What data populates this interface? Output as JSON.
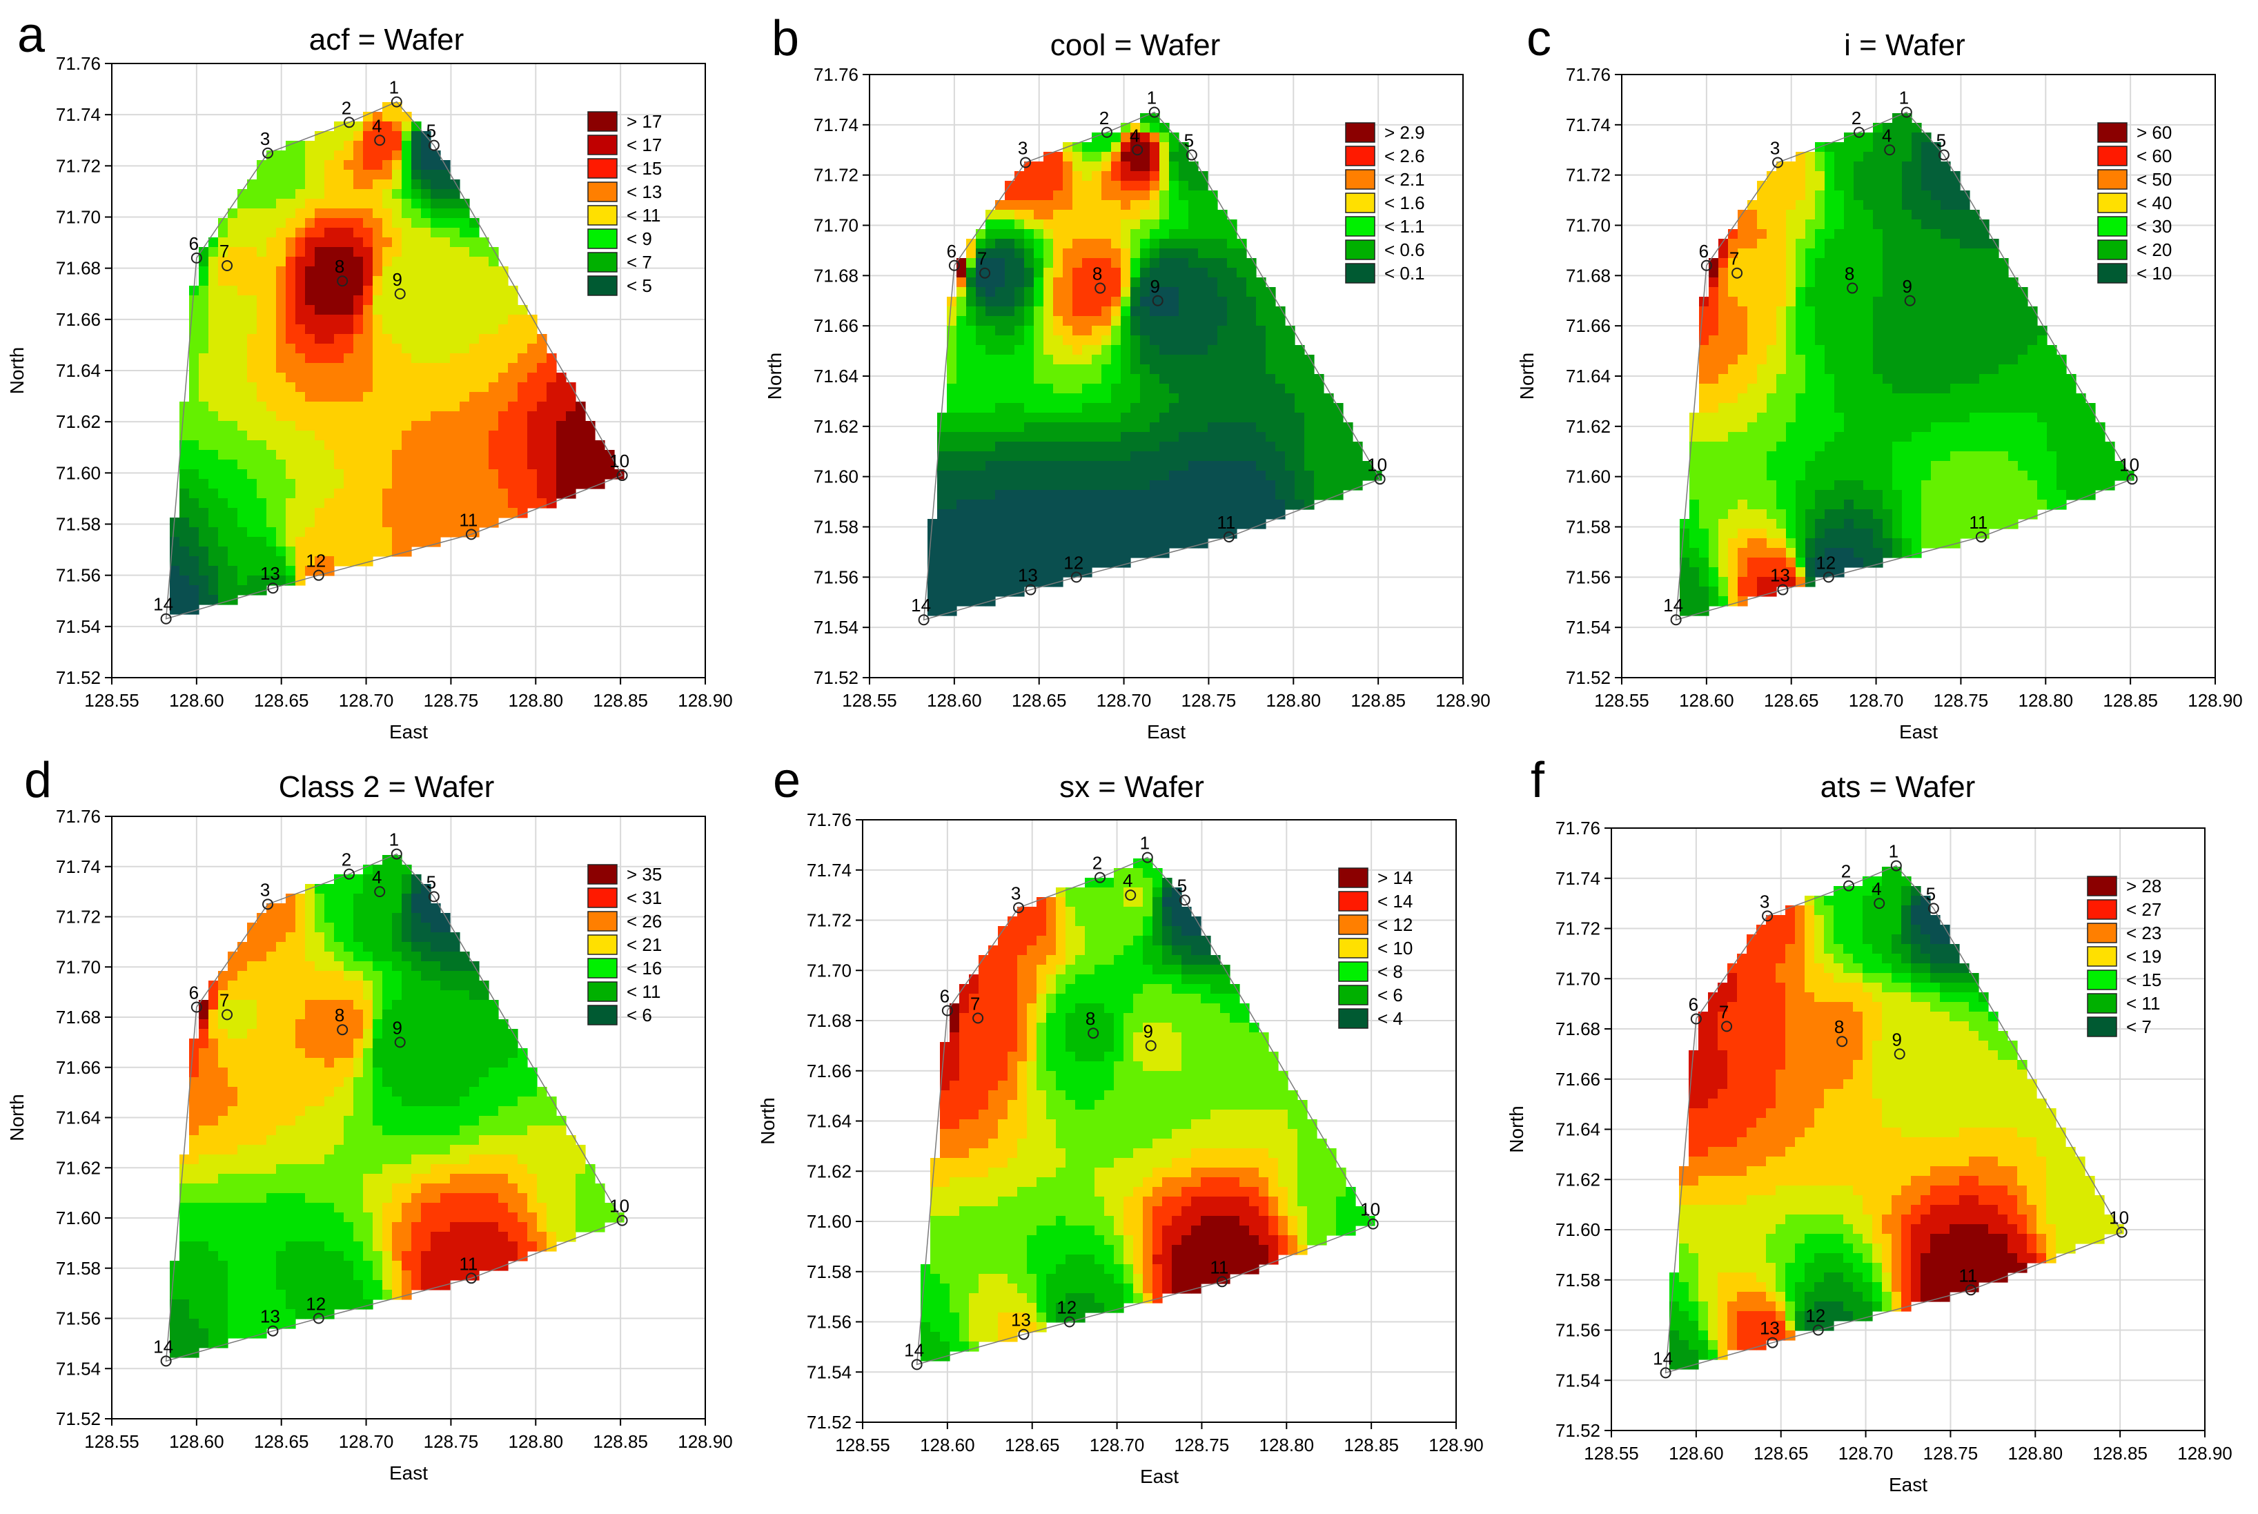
{
  "figure": {
    "colors": {
      "dark_red": "#8b0000",
      "red_dark": "#c00000",
      "red": "#ff1a00",
      "orange": "#ff7f00",
      "yellow": "#ffe000",
      "yellow_green": "#c8f000",
      "bright_green": "#00f000",
      "green": "#00b000",
      "dark_green": "#005a32",
      "teal": "#0a4f4f",
      "grid": "#d9d9d9"
    }
  },
  "chart_data": [
    {
      "type": "contour",
      "panel_letter": "a",
      "title": "acf = Wafer",
      "xlabel": "East",
      "ylabel": "North",
      "xlim": [
        128.55,
        128.9
      ],
      "ylim": [
        71.52,
        71.76
      ],
      "xticks": [
        "128.55",
        "128.60",
        "128.65",
        "128.70",
        "128.75",
        "128.80",
        "128.85",
        "128.90"
      ],
      "yticks": [
        "71.52",
        "71.54",
        "71.56",
        "71.58",
        "71.60",
        "71.62",
        "71.64",
        "71.66",
        "71.68",
        "71.70",
        "71.72",
        "71.74",
        "71.76"
      ],
      "legend": {
        "position": "top-right",
        "entries": [
          "> 17",
          "< 17",
          "< 15",
          "< 13",
          "< 11",
          "< 9",
          "< 7",
          "< 5"
        ]
      },
      "stations": [
        {
          "id": "1",
          "east": 128.718,
          "north": 71.745
        },
        {
          "id": "2",
          "east": 128.69,
          "north": 71.737
        },
        {
          "id": "3",
          "east": 128.642,
          "north": 71.725
        },
        {
          "id": "4",
          "east": 128.708,
          "north": 71.73
        },
        {
          "id": "5",
          "east": 128.74,
          "north": 71.728
        },
        {
          "id": "6",
          "east": 128.6,
          "north": 71.684
        },
        {
          "id": "7",
          "east": 128.618,
          "north": 71.681
        },
        {
          "id": "8",
          "east": 128.686,
          "north": 71.675
        },
        {
          "id": "9",
          "east": 128.72,
          "north": 71.67
        },
        {
          "id": "10",
          "east": 128.851,
          "north": 71.599
        },
        {
          "id": "11",
          "east": 128.762,
          "north": 71.576
        },
        {
          "id": "12",
          "east": 128.672,
          "north": 71.56
        },
        {
          "id": "13",
          "east": 128.645,
          "north": 71.555
        },
        {
          "id": "14",
          "east": 128.582,
          "north": 71.543
        }
      ],
      "station_values": [
        13,
        12,
        11,
        16,
        4,
        9,
        13,
        18,
        12,
        18,
        15,
        14,
        8,
        4
      ]
    },
    {
      "type": "contour",
      "panel_letter": "b",
      "title": "cool = Wafer",
      "xlabel": "East",
      "ylabel": "North",
      "xlim": [
        128.55,
        128.9
      ],
      "ylim": [
        71.52,
        71.76
      ],
      "xticks": [
        "128.55",
        "128.60",
        "128.65",
        "128.70",
        "128.75",
        "128.80",
        "128.85",
        "128.90"
      ],
      "yticks": [
        "71.52",
        "71.54",
        "71.56",
        "71.58",
        "71.60",
        "71.62",
        "71.64",
        "71.66",
        "71.68",
        "71.70",
        "71.72",
        "71.74",
        "71.76"
      ],
      "legend": {
        "position": "top-right",
        "entries": [
          "> 2.9",
          "< 2.6",
          "< 2.1",
          "< 1.6",
          "< 1.1",
          "< 0.6",
          "< 0.1"
        ]
      },
      "stations": [
        {
          "id": "1",
          "east": 128.718,
          "north": 71.745
        },
        {
          "id": "2",
          "east": 128.69,
          "north": 71.737
        },
        {
          "id": "3",
          "east": 128.642,
          "north": 71.725
        },
        {
          "id": "4",
          "east": 128.708,
          "north": 71.73
        },
        {
          "id": "5",
          "east": 128.74,
          "north": 71.728
        },
        {
          "id": "6",
          "east": 128.6,
          "north": 71.684
        },
        {
          "id": "7",
          "east": 128.618,
          "north": 71.681
        },
        {
          "id": "8",
          "east": 128.686,
          "north": 71.675
        },
        {
          "id": "9",
          "east": 128.72,
          "north": 71.67
        },
        {
          "id": "10",
          "east": 128.851,
          "north": 71.599
        },
        {
          "id": "11",
          "east": 128.762,
          "north": 71.576
        },
        {
          "id": "12",
          "east": 128.672,
          "north": 71.56
        },
        {
          "id": "13",
          "east": 128.645,
          "north": 71.555
        },
        {
          "id": "14",
          "east": 128.582,
          "north": 71.543
        }
      ],
      "station_values": [
        1.0,
        1.2,
        2.5,
        2.9,
        0.8,
        2.9,
        0.1,
        2.4,
        0.2,
        0.8,
        0.1,
        0.1,
        0.1,
        0.1
      ]
    },
    {
      "type": "contour",
      "panel_letter": "c",
      "title": "i = Wafer",
      "xlabel": "East",
      "ylabel": "North",
      "xlim": [
        128.55,
        128.9
      ],
      "ylim": [
        71.52,
        71.76
      ],
      "xticks": [
        "128.55",
        "128.60",
        "128.65",
        "128.70",
        "128.75",
        "128.80",
        "128.85",
        "128.90"
      ],
      "yticks": [
        "71.52",
        "71.54",
        "71.56",
        "71.58",
        "71.60",
        "71.62",
        "71.64",
        "71.66",
        "71.68",
        "71.70",
        "71.72",
        "71.74",
        "71.76"
      ],
      "legend": {
        "position": "top-right",
        "entries": [
          "> 60",
          "< 60",
          "< 50",
          "< 40",
          "< 30",
          "< 20",
          "< 10"
        ]
      },
      "stations": [
        {
          "id": "1",
          "east": 128.718,
          "north": 71.745
        },
        {
          "id": "2",
          "east": 128.69,
          "north": 71.737
        },
        {
          "id": "3",
          "east": 128.642,
          "north": 71.725
        },
        {
          "id": "4",
          "east": 128.708,
          "north": 71.73
        },
        {
          "id": "5",
          "east": 128.74,
          "north": 71.728
        },
        {
          "id": "6",
          "east": 128.6,
          "north": 71.684
        },
        {
          "id": "7",
          "east": 128.618,
          "north": 71.681
        },
        {
          "id": "8",
          "east": 128.686,
          "north": 71.675
        },
        {
          "id": "9",
          "east": 128.72,
          "north": 71.67
        },
        {
          "id": "10",
          "east": 128.851,
          "north": 71.599
        },
        {
          "id": "11",
          "east": 128.762,
          "north": 71.576
        },
        {
          "id": "12",
          "east": 128.672,
          "north": 71.56
        },
        {
          "id": "13",
          "east": 128.645,
          "north": 71.555
        },
        {
          "id": "14",
          "east": 128.582,
          "north": 71.543
        }
      ],
      "station_values": [
        25,
        30,
        45,
        25,
        18,
        60,
        45,
        30,
        25,
        30,
        38,
        15,
        55,
        25
      ]
    },
    {
      "type": "contour",
      "panel_letter": "d",
      "title": "Class 2 = Wafer",
      "xlabel": "East",
      "ylabel": "North",
      "xlim": [
        128.55,
        128.9
      ],
      "ylim": [
        71.52,
        71.76
      ],
      "xticks": [
        "128.55",
        "128.60",
        "128.65",
        "128.70",
        "128.75",
        "128.80",
        "128.85",
        "128.90"
      ],
      "yticks": [
        "71.52",
        "71.54",
        "71.56",
        "71.58",
        "71.60",
        "71.62",
        "71.64",
        "71.66",
        "71.68",
        "71.70",
        "71.72",
        "71.74",
        "71.76"
      ],
      "legend": {
        "position": "top-right",
        "entries": [
          "> 35",
          "< 31",
          "< 26",
          "< 21",
          "< 16",
          "< 11",
          "< 6"
        ]
      },
      "stations": [
        {
          "id": "1",
          "east": 128.718,
          "north": 71.745
        },
        {
          "id": "2",
          "east": 128.69,
          "north": 71.737
        },
        {
          "id": "3",
          "east": 128.642,
          "north": 71.725
        },
        {
          "id": "4",
          "east": 128.708,
          "north": 71.73
        },
        {
          "id": "5",
          "east": 128.74,
          "north": 71.728
        },
        {
          "id": "6",
          "east": 128.6,
          "north": 71.684
        },
        {
          "id": "7",
          "east": 128.618,
          "north": 71.681
        },
        {
          "id": "8",
          "east": 128.686,
          "north": 71.675
        },
        {
          "id": "9",
          "east": 128.72,
          "north": 71.67
        },
        {
          "id": "10",
          "east": 128.851,
          "north": 71.599
        },
        {
          "id": "11",
          "east": 128.762,
          "north": 71.576
        },
        {
          "id": "12",
          "east": 128.672,
          "north": 71.56
        },
        {
          "id": "13",
          "east": 128.645,
          "north": 71.555
        },
        {
          "id": "14",
          "east": 128.582,
          "north": 71.543
        }
      ],
      "station_values": [
        16,
        19,
        28,
        16,
        6,
        36,
        24,
        28,
        15,
        22,
        33,
        16,
        18,
        14
      ]
    },
    {
      "type": "contour",
      "panel_letter": "e",
      "title": "sx = Wafer",
      "xlabel": "East",
      "ylabel": "North",
      "xlim": [
        128.55,
        128.9
      ],
      "ylim": [
        71.52,
        71.76
      ],
      "xticks": [
        "128.55",
        "128.60",
        "128.65",
        "128.70",
        "128.75",
        "128.80",
        "128.85",
        "128.90"
      ],
      "yticks": [
        "71.52",
        "71.54",
        "71.56",
        "71.58",
        "71.60",
        "71.62",
        "71.64",
        "71.66",
        "71.68",
        "71.70",
        "71.72",
        "71.74",
        "71.76"
      ],
      "legend": {
        "position": "top-right",
        "entries": [
          "> 14",
          "< 14",
          "< 12",
          "< 10",
          "< 8",
          "< 6",
          "< 4"
        ]
      },
      "stations": [
        {
          "id": "1",
          "east": 128.718,
          "north": 71.745
        },
        {
          "id": "2",
          "east": 128.69,
          "north": 71.737
        },
        {
          "id": "3",
          "east": 128.642,
          "north": 71.725
        },
        {
          "id": "4",
          "east": 128.708,
          "north": 71.73
        },
        {
          "id": "5",
          "east": 128.74,
          "north": 71.728
        },
        {
          "id": "6",
          "east": 128.6,
          "north": 71.684
        },
        {
          "id": "7",
          "east": 128.618,
          "north": 71.681
        },
        {
          "id": "8",
          "east": 128.686,
          "north": 71.675
        },
        {
          "id": "9",
          "east": 128.72,
          "north": 71.67
        },
        {
          "id": "10",
          "east": 128.851,
          "north": 71.599
        },
        {
          "id": "11",
          "east": 128.762,
          "north": 71.576
        },
        {
          "id": "12",
          "east": 128.672,
          "north": 71.56
        },
        {
          "id": "13",
          "east": 128.645,
          "north": 71.555
        },
        {
          "id": "14",
          "east": 128.582,
          "north": 71.543
        }
      ],
      "station_values": [
        8,
        8,
        12,
        9,
        3,
        14,
        12,
        7,
        9,
        8,
        14,
        6,
        10,
        7
      ]
    },
    {
      "type": "contour",
      "panel_letter": "f",
      "title": "ats = Wafer",
      "xlabel": "East",
      "ylabel": "North",
      "xlim": [
        128.55,
        128.9
      ],
      "ylim": [
        71.52,
        71.76
      ],
      "xticks": [
        "128.55",
        "128.60",
        "128.65",
        "128.70",
        "128.75",
        "128.80",
        "128.85",
        "128.90"
      ],
      "yticks": [
        "71.52",
        "71.54",
        "71.56",
        "71.58",
        "71.60",
        "71.62",
        "71.64",
        "71.66",
        "71.68",
        "71.70",
        "71.72",
        "71.74",
        "71.76"
      ],
      "legend": {
        "position": "top-right",
        "entries": [
          "> 28",
          "< 27",
          "< 23",
          "< 19",
          "< 15",
          "< 11",
          "< 7"
        ]
      },
      "stations": [
        {
          "id": "1",
          "east": 128.718,
          "north": 71.745
        },
        {
          "id": "2",
          "east": 128.69,
          "north": 71.737
        },
        {
          "id": "3",
          "east": 128.642,
          "north": 71.725
        },
        {
          "id": "4",
          "east": 128.708,
          "north": 71.73
        },
        {
          "id": "5",
          "east": 128.74,
          "north": 71.728
        },
        {
          "id": "6",
          "east": 128.6,
          "north": 71.684
        },
        {
          "id": "7",
          "east": 128.618,
          "north": 71.681
        },
        {
          "id": "8",
          "east": 128.686,
          "north": 71.675
        },
        {
          "id": "9",
          "east": 128.72,
          "north": 71.67
        },
        {
          "id": "10",
          "east": 128.851,
          "north": 71.599
        },
        {
          "id": "11",
          "east": 128.762,
          "north": 71.576
        },
        {
          "id": "12",
          "east": 128.672,
          "north": 71.56
        },
        {
          "id": "13",
          "east": 128.645,
          "north": 71.555
        },
        {
          "id": "14",
          "east": 128.582,
          "north": 71.543
        }
      ],
      "station_values": [
        14,
        16,
        24,
        14,
        6,
        27,
        25,
        22,
        19,
        18,
        28,
        10,
        25,
        12
      ]
    }
  ]
}
